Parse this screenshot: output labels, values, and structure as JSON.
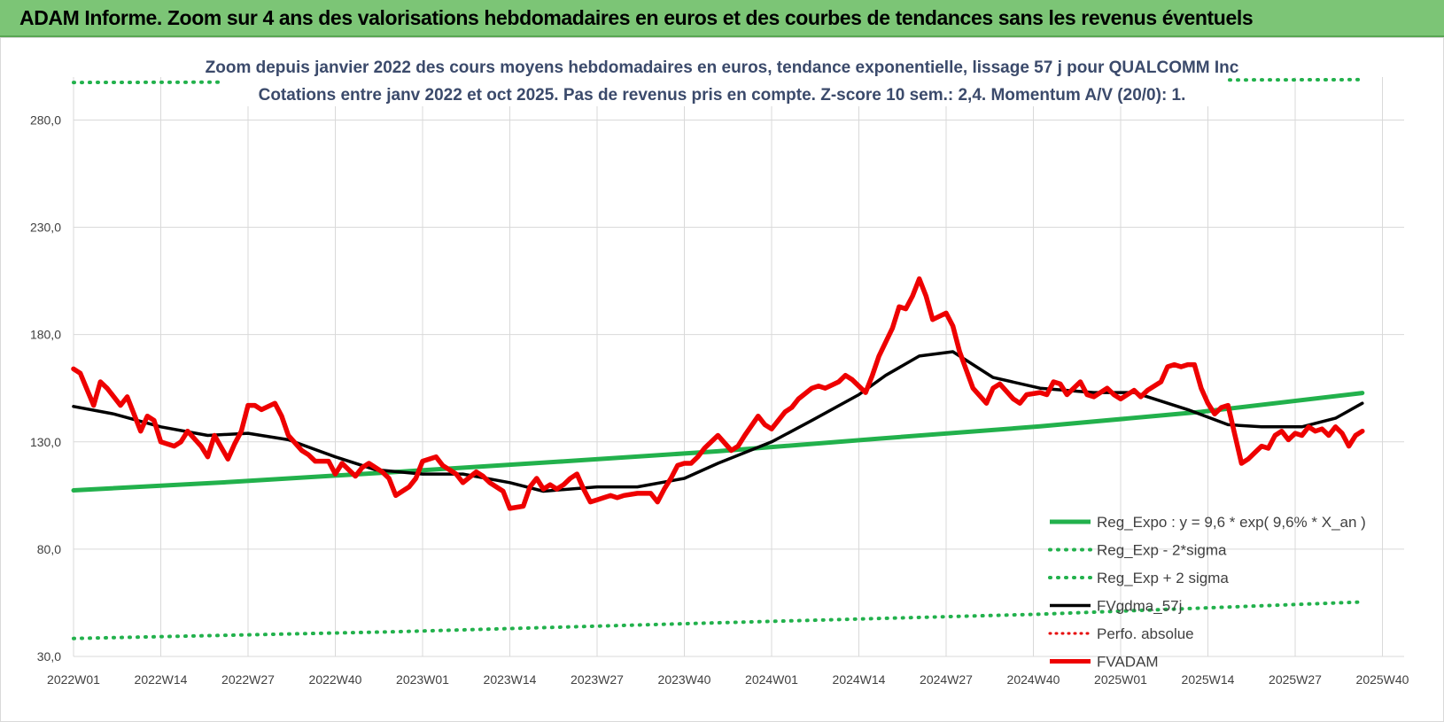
{
  "header": {
    "title": "ADAM Informe. Zoom sur 4 ans des valorisations hebdomadaires en euros et des courbes de tendances sans les revenus éventuels"
  },
  "colors": {
    "header_bg": "#7cc576",
    "reg_expo": "#22b14c",
    "band": "#22b14c",
    "ma": "#000000",
    "perfo": "#e60000",
    "price": "#ee0000",
    "subtitle": "#3b4a6b"
  },
  "chart_data": {
    "type": "line",
    "title_lines": [
      "Zoom depuis janvier 2022 des cours moyens hebdomadaires en euros, tendance exponentielle, lissage 57 j pour QUALCOMM Inc",
      "Cotations entre janv 2022 et oct 2025. Pas de revenus pris en compte. Z-score 10 sem.: 2,4. Momentum A/V (20/0): 1."
    ],
    "ylim": [
      30,
      300
    ],
    "y_ticks": [
      30,
      80,
      130,
      180,
      230,
      280
    ],
    "y_tick_labels": [
      "30,0",
      "80,0",
      "130,0",
      "180,0",
      "230,0",
      "280,0"
    ],
    "x_range": [
      0,
      192
    ],
    "x_ticks": [
      0,
      13,
      26,
      39,
      52,
      65,
      78,
      91,
      104,
      117,
      130,
      143,
      156,
      169,
      182,
      195
    ],
    "x_tick_labels": [
      "2022W01",
      "2022W14",
      "2022W27",
      "2022W40",
      "2023W01",
      "2023W14",
      "2023W27",
      "2023W40",
      "2024W01",
      "2024W14",
      "2024W27",
      "2024W40",
      "2025W01",
      "2025W14",
      "2025W27",
      "2025W40"
    ],
    "grid": true,
    "legend_position": "lower-right",
    "series": [
      {
        "name": "Reg_Expo : y = 9,6 * exp( 9,6% *  X_an )",
        "style": "solid-thick",
        "x": [
          0,
          24,
          48,
          72,
          96,
          120,
          144,
          168,
          192
        ],
        "values": [
          107.4,
          111.4,
          116.0,
          120.7,
          125.6,
          131.5,
          137.2,
          144.0,
          152.8
        ]
      },
      {
        "name": "Reg_Exp - 2*sigma",
        "style": "dotted",
        "x": [
          0,
          48,
          96,
          144,
          192
        ],
        "values": [
          38.4,
          41.5,
          45.7,
          49.7,
          55.4
        ]
      },
      {
        "name": "Reg_Exp + 2 sigma",
        "style": "dotted",
        "x": [
          0,
          192
        ],
        "values": [
          297.5,
          298.8
        ]
      },
      {
        "name": "FVgdma_57j",
        "style": "solid",
        "x": [
          0,
          6,
          13,
          20,
          26,
          32,
          39,
          45,
          52,
          58,
          65,
          70,
          78,
          84,
          91,
          96,
          104,
          110,
          117,
          121,
          126,
          131,
          137,
          144,
          152,
          158,
          166,
          172,
          177,
          183,
          188,
          192
        ],
        "values": [
          146.5,
          143.0,
          137.0,
          133.0,
          134.0,
          131.0,
          123.0,
          117.0,
          115.0,
          115.0,
          111.0,
          107.0,
          109.0,
          109.0,
          113.0,
          120.0,
          130.0,
          140.0,
          152.0,
          161.0,
          170.0,
          172.0,
          160.0,
          155.0,
          153.0,
          153.0,
          145.0,
          138.0,
          137.0,
          137.0,
          141.0,
          148.0
        ]
      },
      {
        "name": "Perfo. absolue",
        "style": "dotted-red",
        "x": [],
        "values": []
      },
      {
        "name": "FVADAM",
        "style": "solid-thick",
        "x": [
          0,
          1,
          3,
          4,
          5,
          7,
          8,
          10,
          11,
          12,
          13,
          15,
          16,
          17,
          19,
          20,
          21,
          23,
          24,
          25,
          26,
          27,
          28,
          30,
          31,
          32,
          34,
          35,
          36,
          38,
          39,
          40,
          42,
          43,
          44,
          46,
          47,
          48,
          50,
          51,
          52,
          54,
          55,
          57,
          58,
          60,
          61,
          62,
          64,
          65,
          67,
          68,
          69,
          70,
          71,
          72,
          73,
          74,
          75,
          76,
          77,
          78,
          79,
          80,
          81,
          82,
          84,
          86,
          87,
          88,
          89,
          90,
          91,
          92,
          93,
          94,
          96,
          98,
          99,
          100,
          102,
          103,
          104,
          106,
          107,
          108,
          110,
          111,
          112,
          114,
          115,
          116,
          118,
          119,
          120,
          122,
          123,
          124,
          125,
          126,
          127,
          128,
          130,
          131,
          132,
          134,
          136,
          137,
          138,
          140,
          141,
          142,
          144,
          145,
          146,
          147,
          148,
          150,
          151,
          152,
          154,
          155,
          156,
          158,
          159,
          160,
          162,
          163,
          164,
          165,
          166,
          167,
          168,
          169,
          170,
          171,
          172,
          174,
          175,
          176,
          177,
          178,
          179,
          180,
          181,
          182,
          183,
          184,
          185,
          186,
          187,
          188,
          189,
          190,
          191,
          192
        ],
        "values": [
          164.0,
          162.0,
          147.0,
          158.0,
          155.0,
          147.0,
          151.0,
          135.0,
          142.0,
          140.0,
          130.0,
          128.0,
          130.0,
          135.0,
          128.0,
          123.0,
          133.0,
          122.0,
          129.0,
          135.0,
          147.0,
          147.0,
          145.0,
          148.0,
          142.0,
          133.0,
          126.0,
          124.0,
          121.0,
          121.0,
          115.0,
          120.0,
          114.0,
          118.0,
          120.0,
          116.0,
          113.0,
          105.0,
          109.0,
          113.0,
          121.0,
          123.0,
          119.0,
          115.0,
          111.0,
          116.0,
          114.0,
          111.0,
          107.0,
          99.0,
          100.0,
          109.0,
          113.0,
          108.0,
          110.0,
          108.0,
          110.0,
          113.0,
          115.0,
          108.0,
          102.0,
          103.0,
          104.0,
          105.0,
          104.0,
          105.0,
          106.0,
          106.0,
          102.0,
          108.0,
          113.0,
          119.0,
          120.0,
          120.0,
          123.0,
          127.0,
          133.0,
          126.0,
          128.0,
          133.0,
          142.0,
          138.0,
          136.0,
          144.0,
          146.0,
          150.0,
          155.0,
          156.0,
          155.0,
          158.0,
          161.0,
          159.0,
          153.0,
          161.0,
          170.0,
          183.0,
          193.0,
          192.0,
          198.0,
          206.0,
          198.0,
          187.0,
          190.0,
          184.0,
          172.0,
          155.0,
          148.0,
          155.0,
          157.0,
          150.0,
          148.0,
          152.0,
          153.0,
          152.0,
          158.0,
          157.0,
          152.0,
          158.0,
          152.0,
          151.0,
          155.0,
          152.0,
          150.0,
          154.0,
          151.0,
          154.0,
          158.0,
          165.0,
          166.0,
          165.0,
          166.0,
          166.0,
          155.0,
          148.0,
          143.0,
          146.0,
          147.0,
          120.0,
          122.0,
          125.0,
          128.0,
          127.0,
          133.0,
          135.0,
          131.0,
          134.0,
          133.0,
          137.0,
          135.0,
          136.0,
          133.0,
          137.0,
          134.0,
          128.0,
          133.0,
          135.0
        ]
      }
    ]
  }
}
